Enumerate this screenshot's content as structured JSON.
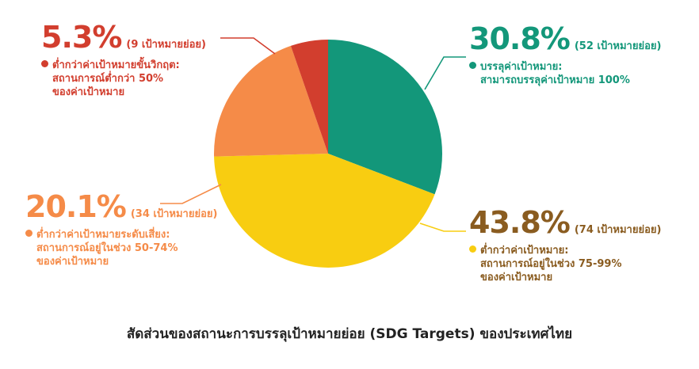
{
  "chart_data": {
    "type": "pie",
    "title": "สัดส่วนของสถานะการบรรลุเป้าหมายย่อย (SDG Targets) ของประเทศไทย",
    "slices": [
      {
        "percent_label": "30.8%",
        "value": 30.8,
        "count_label": "(52 เป้าหมายย่อย)",
        "category": "บรรลุค่าเป้าหมาย:",
        "description_lines": [
          "สามารถบรรลุค่าเป้าหมาย 100%"
        ],
        "color": "#13977a",
        "text_color": "#13977a",
        "pct_color": "#13977a"
      },
      {
        "percent_label": "43.8%",
        "value": 43.8,
        "count_label": "(74 เป้าหมายย่อย)",
        "category": "ต่ำกว่าค่าเป้าหมาย:",
        "description_lines": [
          "สถานการณ์อยู่ในช่วง 75-99%",
          "ของค่าเป้าหมาย"
        ],
        "color": "#f8cd11",
        "text_color": "#8a5c20",
        "pct_color": "#8a5c20"
      },
      {
        "percent_label": "20.1%",
        "value": 20.1,
        "count_label": "(34 เป้าหมายย่อย)",
        "category": "ต่ำกว่าค่าเป้าหมายระดับเสี่ยง:",
        "description_lines": [
          "สถานการณ์อยู่ในช่วง 50-74%",
          "ของค่าเป้าหมาย"
        ],
        "color": "#f58b48",
        "text_color": "#f58b48",
        "pct_color": "#f58b48"
      },
      {
        "percent_label": "5.3%",
        "value": 5.3,
        "count_label": "(9 เป้าหมายย่อย)",
        "category": "ต่ำกว่าค่าเป้าหมายขั้นวิกฤต:",
        "description_lines": [
          "สถานการณ์ต่ำกว่า 50%",
          "ของค่าเป้าหมาย"
        ],
        "color": "#d23e2e",
        "text_color": "#d23e2e",
        "pct_color": "#d23e2e"
      }
    ]
  }
}
